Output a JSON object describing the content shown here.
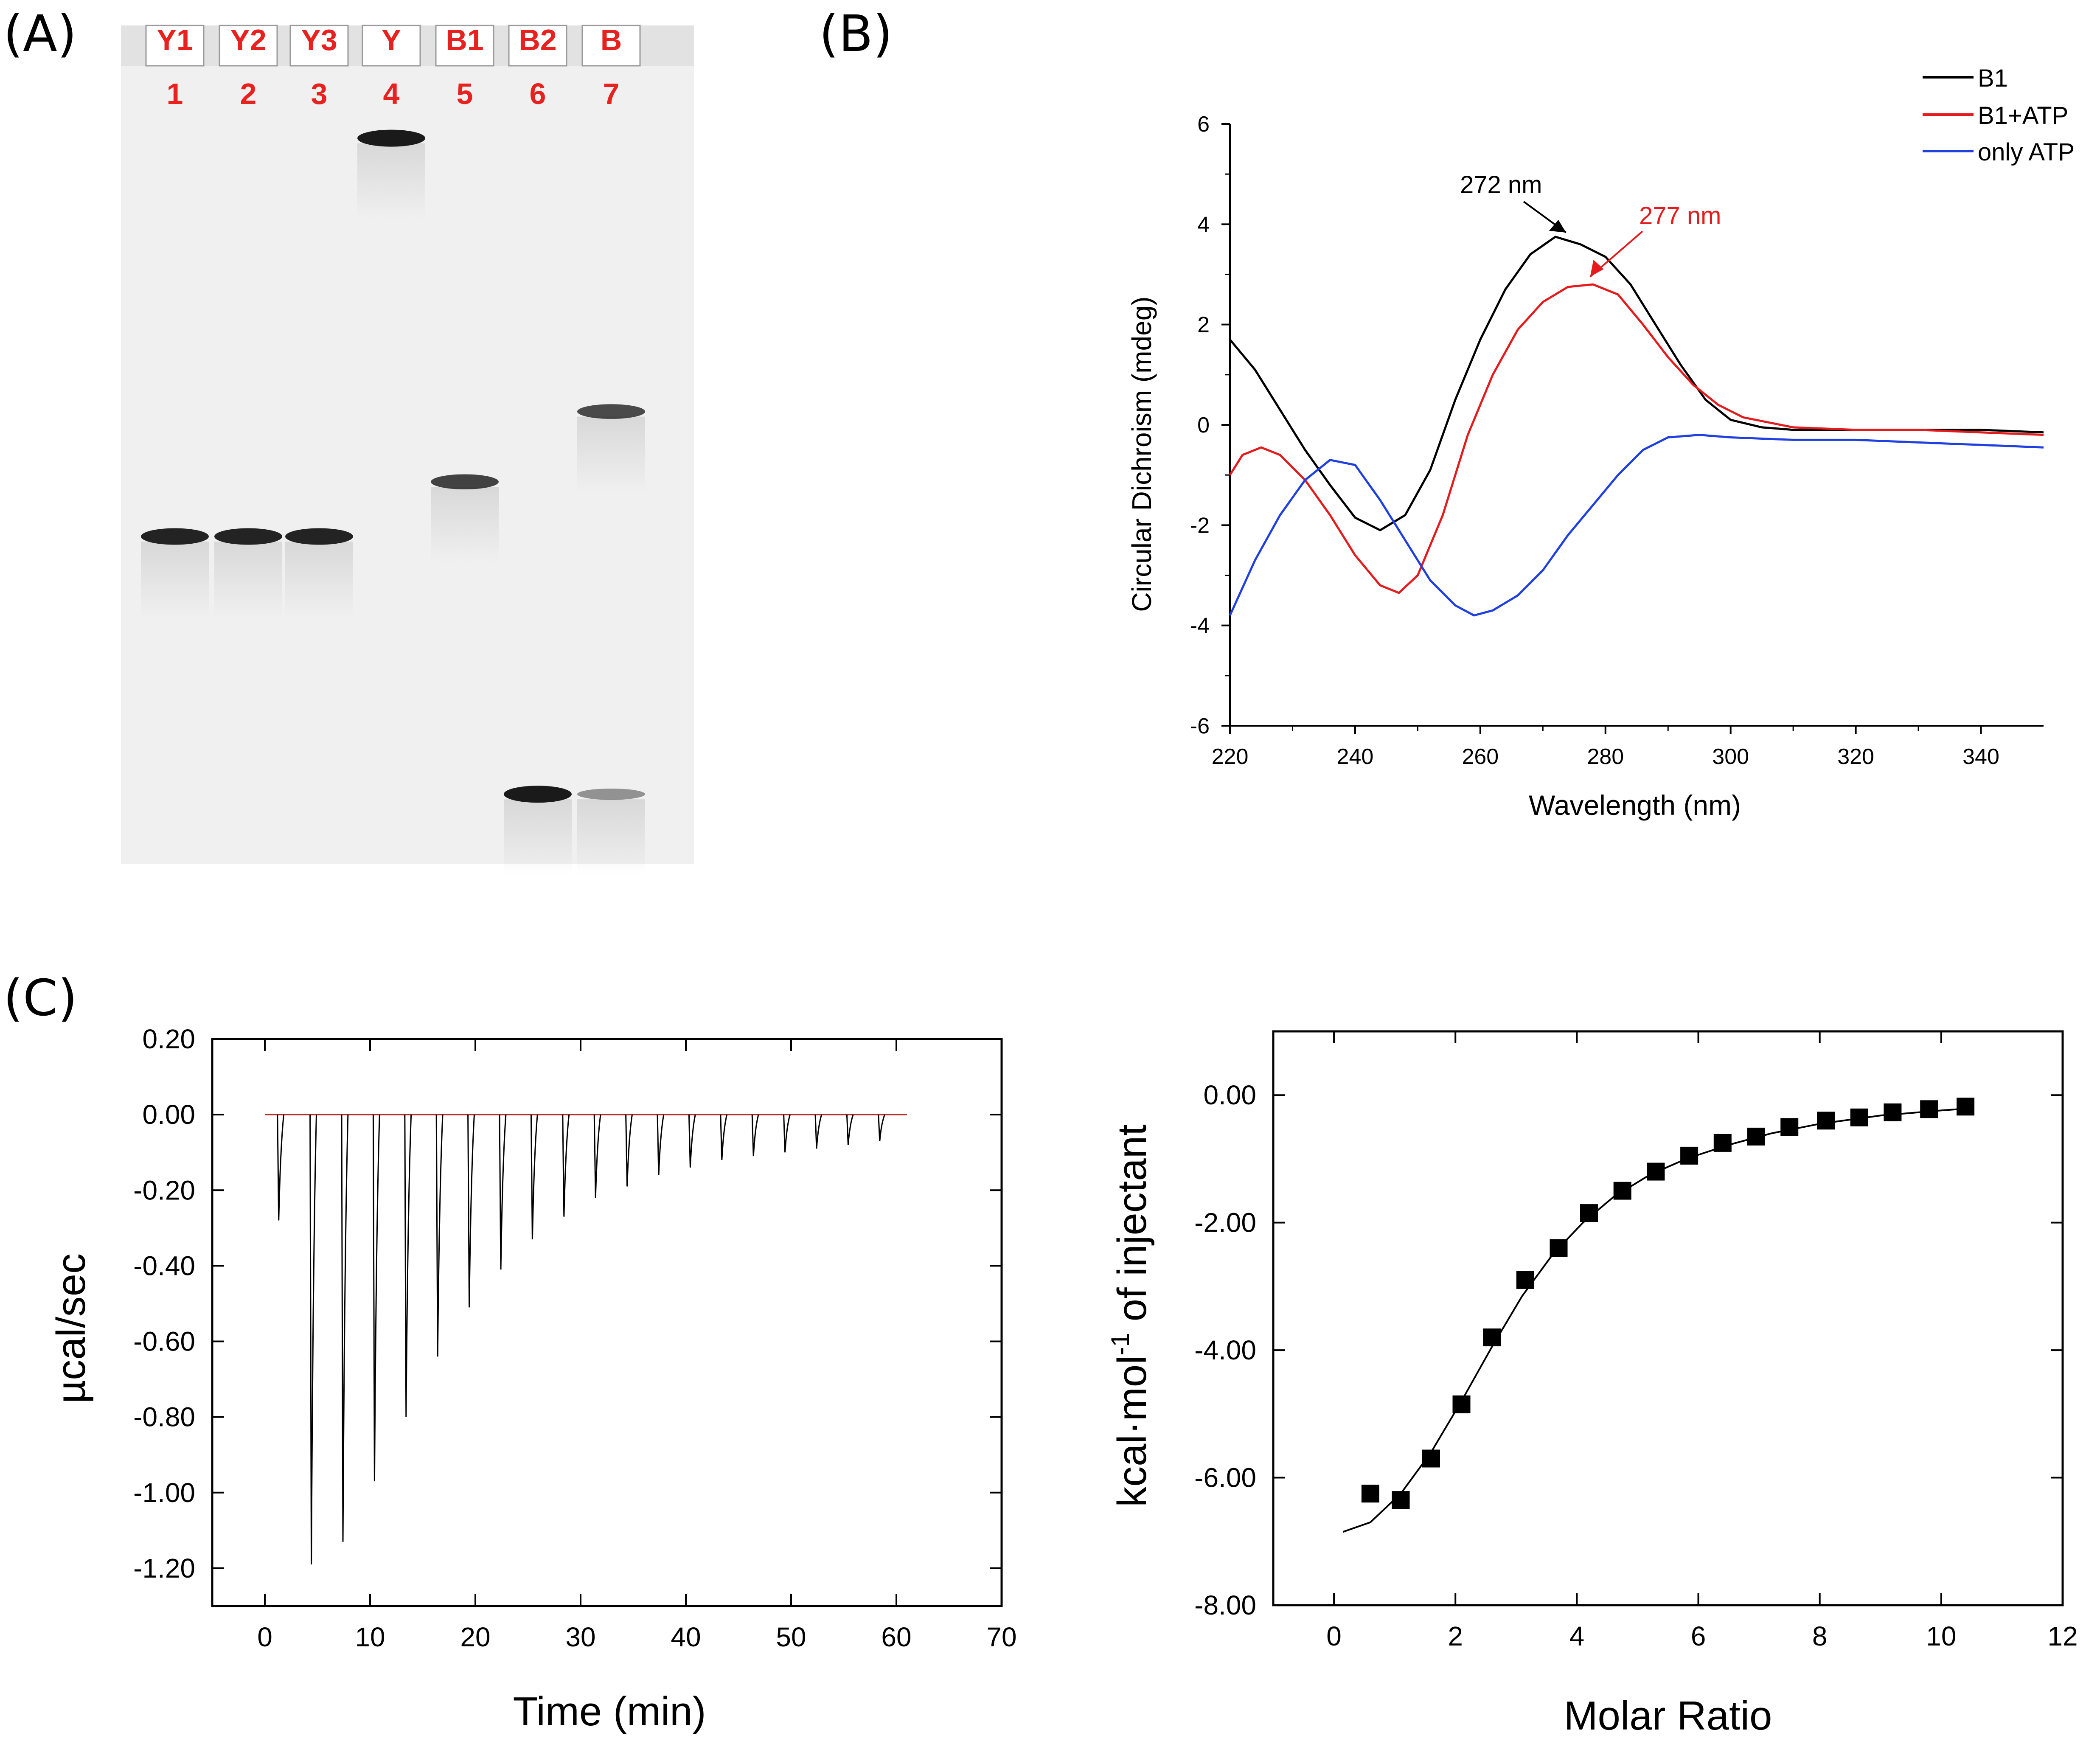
{
  "panel_labels": {
    "a": "(A)",
    "b": "(B)",
    "c": "(C)"
  },
  "colors": {
    "gel_background": "#f0f0f0",
    "gel_band": "#1a1a1a",
    "lane_label": "#e8201e",
    "series_B1": "#000000",
    "series_B1ATP": "#e41a1c",
    "series_ATP": "#1f3fe0",
    "fit_line": "#000000",
    "baseline": "#d9342b"
  },
  "chart_data": [
    {
      "panel": "A",
      "type": "gel",
      "lanes": [
        {
          "name": "Y1",
          "number": "1",
          "bands": [
            {
              "position": 0.6,
              "intensity": 0.95
            }
          ]
        },
        {
          "name": "Y2",
          "number": "2",
          "bands": [
            {
              "position": 0.6,
              "intensity": 0.95
            }
          ]
        },
        {
          "name": "Y3",
          "number": "3",
          "bands": [
            {
              "position": 0.6,
              "intensity": 0.95
            }
          ]
        },
        {
          "name": "Y",
          "number": "4",
          "bands": [
            {
              "position": 0.09,
              "intensity": 1.0
            }
          ]
        },
        {
          "name": "B1",
          "number": "5",
          "bands": [
            {
              "position": 0.53,
              "intensity": 0.75
            }
          ]
        },
        {
          "name": "B2",
          "number": "6",
          "bands": [
            {
              "position": 0.93,
              "intensity": 1.0
            }
          ]
        },
        {
          "name": "B",
          "number": "7",
          "bands": [
            {
              "position": 0.44,
              "intensity": 0.7
            },
            {
              "position": 0.93,
              "intensity": 0.25
            }
          ]
        }
      ]
    },
    {
      "panel": "B",
      "type": "line",
      "xlabel": "Wavelength (nm)",
      "ylabel": "Circular Dichroism (mdeg)",
      "xlim": [
        220,
        350
      ],
      "ylim": [
        -6,
        6
      ],
      "xticks": [
        220,
        240,
        260,
        280,
        300,
        320,
        340
      ],
      "yticks": [
        -6,
        -4,
        -2,
        0,
        2,
        4,
        6
      ],
      "series": [
        {
          "name": "B1",
          "color_key": "series_B1",
          "x": [
            220,
            224,
            228,
            232,
            236,
            240,
            244,
            248,
            252,
            256,
            260,
            264,
            268,
            272,
            276,
            280,
            284,
            288,
            292,
            296,
            300,
            305,
            310,
            320,
            330,
            340,
            350
          ],
          "y": [
            1.7,
            1.1,
            0.3,
            -0.5,
            -1.2,
            -1.85,
            -2.1,
            -1.8,
            -0.9,
            0.5,
            1.7,
            2.7,
            3.4,
            3.75,
            3.6,
            3.35,
            2.8,
            2.0,
            1.2,
            0.5,
            0.1,
            -0.05,
            -0.1,
            -0.1,
            -0.1,
            -0.1,
            -0.15
          ]
        },
        {
          "name": "B1+ATP",
          "color_key": "series_B1ATP",
          "x": [
            220,
            222,
            225,
            228,
            232,
            236,
            240,
            244,
            247,
            250,
            254,
            258,
            262,
            266,
            270,
            274,
            278,
            282,
            286,
            290,
            294,
            298,
            302,
            310,
            320,
            330,
            340,
            350
          ],
          "y": [
            -1.0,
            -0.6,
            -0.45,
            -0.6,
            -1.1,
            -1.8,
            -2.6,
            -3.2,
            -3.35,
            -3.0,
            -1.8,
            -0.2,
            1.0,
            1.9,
            2.45,
            2.75,
            2.8,
            2.6,
            2.0,
            1.35,
            0.8,
            0.4,
            0.15,
            -0.05,
            -0.1,
            -0.1,
            -0.15,
            -0.2
          ]
        },
        {
          "name": "only ATP",
          "color_key": "series_ATP",
          "x": [
            220,
            224,
            228,
            232,
            236,
            240,
            244,
            248,
            252,
            256,
            259,
            262,
            266,
            270,
            274,
            278,
            282,
            286,
            290,
            295,
            300,
            310,
            320,
            330,
            340,
            350
          ],
          "y": [
            -3.8,
            -2.7,
            -1.8,
            -1.1,
            -0.7,
            -0.8,
            -1.5,
            -2.3,
            -3.1,
            -3.6,
            -3.8,
            -3.7,
            -3.4,
            -2.9,
            -2.2,
            -1.6,
            -1.0,
            -0.5,
            -0.25,
            -0.2,
            -0.25,
            -0.3,
            -0.3,
            -0.35,
            -0.4,
            -0.45
          ]
        }
      ],
      "annotations": [
        {
          "text": "272 nm",
          "x": 272,
          "y": 3.75,
          "color_key": "series_B1"
        },
        {
          "text": "277 nm",
          "x": 277,
          "y": 2.8,
          "color_key": "series_B1ATP"
        }
      ],
      "legend": "top-right"
    },
    {
      "panel": "C-left",
      "type": "line",
      "xlabel": "Time (min)",
      "ylabel": "µcal/sec",
      "xlim": [
        -5,
        70
      ],
      "ylim": [
        -1.3,
        0.2
      ],
      "xticks": [
        0,
        10,
        20,
        30,
        40,
        50,
        60,
        70
      ],
      "yticks": [
        0.2,
        0.0,
        -0.2,
        -0.4,
        -0.6,
        -0.8,
        -1.0,
        -1.2
      ],
      "ytick_labels": [
        "0.20",
        "0.00",
        "-0.20",
        "-0.40",
        "-0.60",
        "-0.80",
        "-1.00",
        "-1.20"
      ],
      "baseline_x": [
        0,
        61
      ],
      "peaks": {
        "time_min": [
          1.2,
          4.3,
          7.3,
          10.3,
          13.3,
          16.3,
          19.3,
          22.3,
          25.3,
          28.3,
          31.3,
          34.3,
          37.3,
          40.3,
          43.3,
          46.3,
          49.3,
          52.3,
          55.3,
          58.3
        ],
        "value": [
          -0.28,
          -1.19,
          -1.13,
          -0.97,
          -0.8,
          -0.64,
          -0.51,
          -0.41,
          -0.33,
          -0.27,
          -0.22,
          -0.19,
          -0.16,
          -0.14,
          -0.12,
          -0.11,
          -0.1,
          -0.09,
          -0.08,
          -0.07
        ]
      }
    },
    {
      "panel": "C-right",
      "type": "scatter",
      "xlabel": "Molar Ratio",
      "ylabel_main": "kcal·mol",
      "ylabel_sup": "-1",
      "ylabel_tail": " of injectant",
      "xlim": [
        -1,
        12
      ],
      "ylim": [
        -8,
        1
      ],
      "xticks": [
        0,
        2,
        4,
        6,
        8,
        10,
        12
      ],
      "yticks": [
        0,
        -2,
        -4,
        -6,
        -8
      ],
      "ytick_labels": [
        "0.00",
        "-2.00",
        "-4.00",
        "-6.00",
        "-8.00"
      ],
      "points": {
        "x": [
          0.6,
          1.1,
          1.6,
          2.1,
          2.6,
          3.15,
          3.7,
          4.2,
          4.75,
          5.3,
          5.85,
          6.4,
          6.95,
          7.5,
          8.1,
          8.65,
          9.2,
          9.8,
          10.4
        ],
        "y": [
          -6.25,
          -6.35,
          -5.7,
          -4.85,
          -3.8,
          -2.9,
          -2.4,
          -1.85,
          -1.5,
          -1.2,
          -0.95,
          -0.75,
          -0.65,
          -0.5,
          -0.4,
          -0.35,
          -0.27,
          -0.22,
          -0.18
        ]
      },
      "fit": {
        "x": [
          0.15,
          0.6,
          1.1,
          1.6,
          2.1,
          2.6,
          3.1,
          3.6,
          4.1,
          4.6,
          5.2,
          5.8,
          6.5,
          7.2,
          8.0,
          9.0,
          10.0,
          10.45
        ],
        "y": [
          -6.85,
          -6.7,
          -6.25,
          -5.6,
          -4.8,
          -3.95,
          -3.15,
          -2.5,
          -2.0,
          -1.6,
          -1.25,
          -1.0,
          -0.78,
          -0.6,
          -0.45,
          -0.32,
          -0.24,
          -0.21
        ]
      }
    }
  ]
}
